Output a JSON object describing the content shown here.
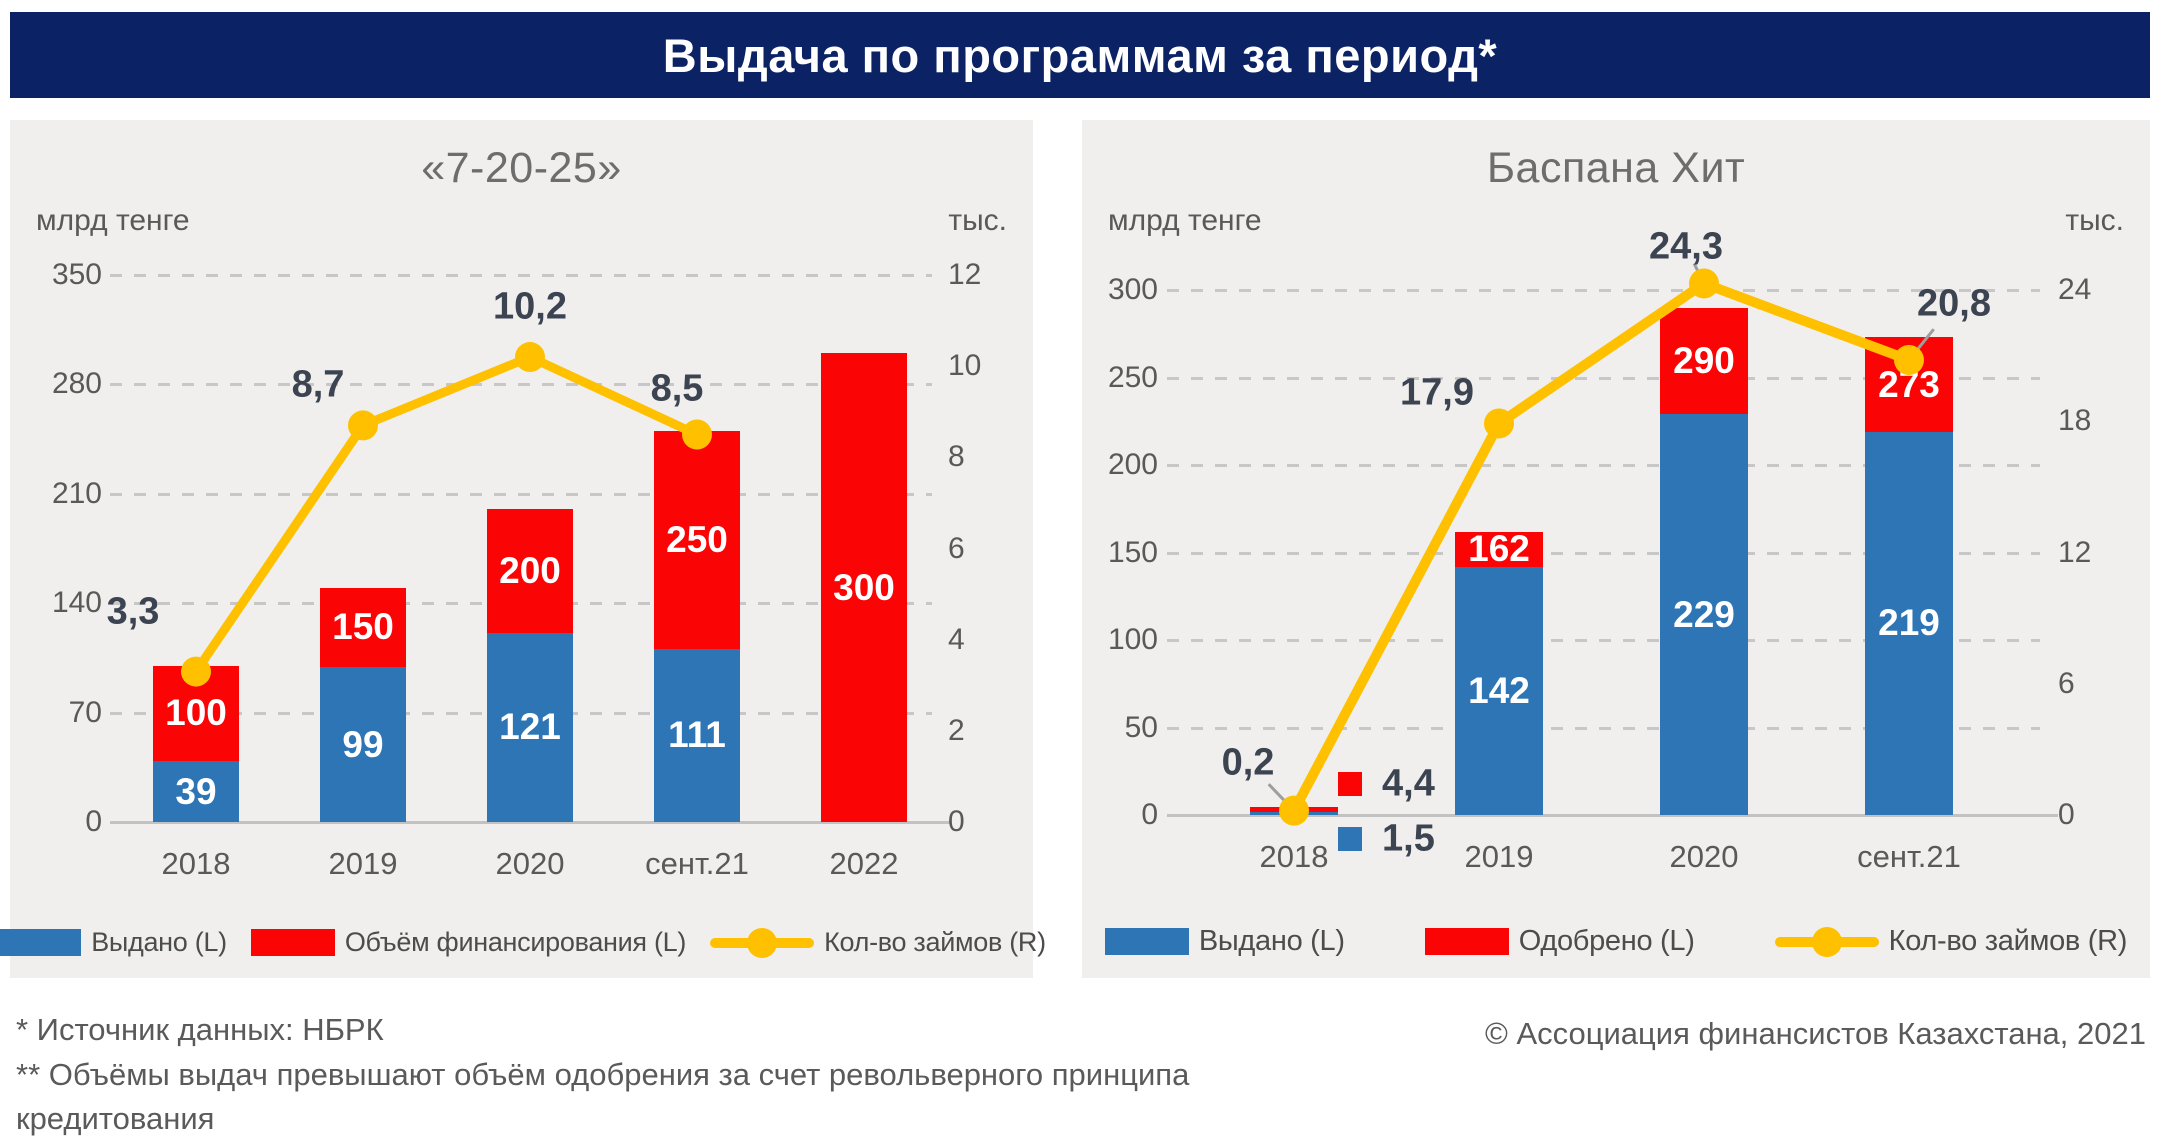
{
  "header": {
    "title": "Выдача по программам за период*"
  },
  "colors": {
    "navy": "#0B2265",
    "blue": "#2E75B6",
    "red": "#FB0406",
    "yellow": "#FFC000",
    "panel_bg": "#F0EFED",
    "grid": "#C7C7C7",
    "tick_text": "#595959",
    "data_label_text": "#3C4452"
  },
  "chart_data": [
    {
      "type": "bar+line",
      "title": "«7-20-25»",
      "left_axis_label": "млрд тенге",
      "right_axis_label": "тыс.",
      "left_axis": {
        "ticks": [
          350,
          280,
          210,
          140,
          70,
          0
        ],
        "max": 350
      },
      "right_axis": {
        "ticks": [
          12,
          10,
          8,
          6,
          4,
          2,
          0
        ],
        "max": 12
      },
      "grid": "dashed horizontal at left-axis ticks",
      "legend_position": "bottom",
      "categories": [
        "2018",
        "2019",
        "2020",
        "сент.21",
        "2022"
      ],
      "series": [
        {
          "name": "Выдано (L)",
          "type": "bar",
          "color": "blue",
          "axis": "left",
          "values": [
            39,
            99,
            121,
            111,
            null
          ]
        },
        {
          "name": "Объём финансирования (L)",
          "type": "bar",
          "color": "red",
          "axis": "left",
          "values": [
            100,
            150,
            200,
            250,
            300
          ]
        },
        {
          "name": "Кол-во займов (R)",
          "type": "line",
          "color": "yellow",
          "axis": "right",
          "values": [
            3.3,
            8.7,
            10.2,
            8.5,
            null
          ],
          "point_labels": [
            "3,3",
            "8,7",
            "10,2",
            "8,5",
            null
          ]
        }
      ]
    },
    {
      "type": "bar+line",
      "title": "Баспана Хит",
      "left_axis_label": "млрд тенге",
      "right_axis_label": "тыс.",
      "left_axis": {
        "ticks": [
          300,
          250,
          200,
          150,
          100,
          50,
          0
        ],
        "max": 300
      },
      "right_axis": {
        "ticks": [
          24,
          18,
          12,
          6,
          0
        ],
        "max": 24
      },
      "grid": "dashed horizontal at left-axis ticks",
      "legend_position": "bottom",
      "categories": [
        "2018",
        "2019",
        "2020",
        "сент.21"
      ],
      "series": [
        {
          "name": "Выдано (L)",
          "type": "bar",
          "color": "blue",
          "axis": "left",
          "values": [
            1.5,
            142,
            229,
            219
          ]
        },
        {
          "name": "Одобрено (L)",
          "type": "bar",
          "color": "red",
          "axis": "left",
          "values": [
            4.4,
            162,
            290,
            273
          ]
        },
        {
          "name": "Кол-во займов (R)",
          "type": "line",
          "color": "yellow",
          "axis": "right",
          "values": [
            0.2,
            17.9,
            24.3,
            20.8
          ],
          "point_labels": [
            "0,2",
            "17,9",
            "24,3",
            "20,8"
          ]
        }
      ],
      "annotations": [
        {
          "swatch": "red",
          "label": "4,4"
        },
        {
          "swatch": "blue",
          "label": "1,5"
        }
      ]
    }
  ],
  "footer": {
    "note1": "* Источник данных: НБРК",
    "note2_line1": "** Объёмы выдач превышают объём одобрения за счет револьверного принципа",
    "note2_line2": "кредитования",
    "copyright": "© Ассоциация финансистов Казахстана, 2021"
  }
}
